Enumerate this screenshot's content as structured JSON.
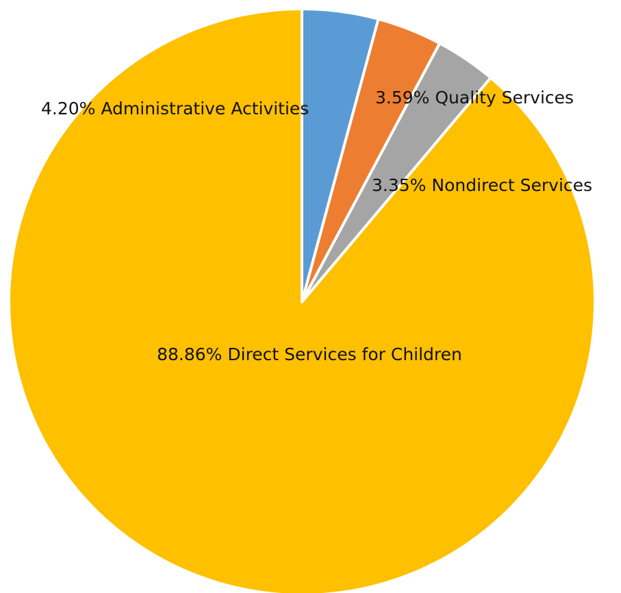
{
  "chart_data": {
    "type": "pie",
    "title": "",
    "slices": [
      {
        "label": "Administrative Activities",
        "value": 4.2,
        "display": "4.20% Administrative Activities",
        "color": "#5b9bd5"
      },
      {
        "label": "Quality Services",
        "value": 3.59,
        "display": "3.59% Quality Services",
        "color": "#ed7d31"
      },
      {
        "label": "Nondirect Services",
        "value": 3.35,
        "display": "3.35% Nondirect Services",
        "color": "#a5a5a5"
      },
      {
        "label": "Direct Services for Children",
        "value": 88.86,
        "display": "88.86% Direct Services for Children",
        "color": "#ffc000"
      }
    ],
    "start_angle_deg": 0,
    "direction": "clockwise",
    "slice_border_color": "#ffffff",
    "legend": "none"
  }
}
